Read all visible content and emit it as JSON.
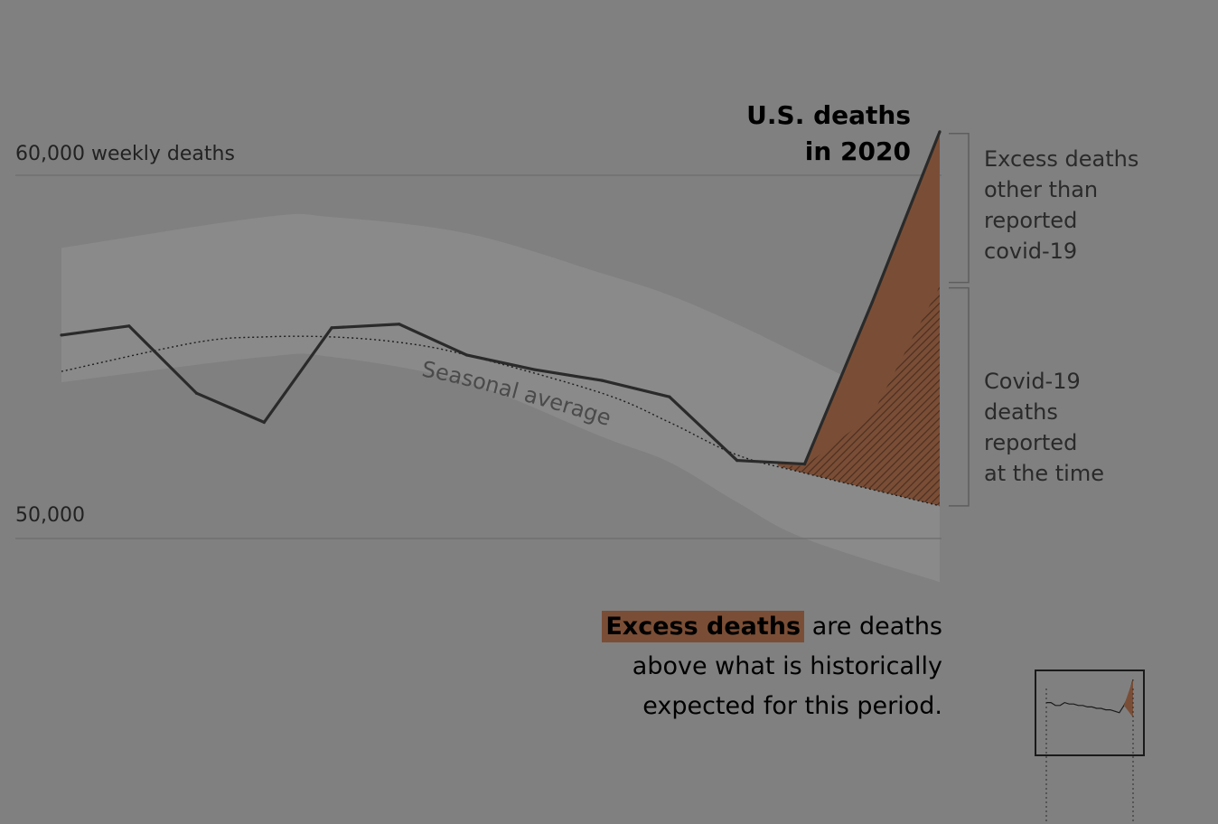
{
  "chart_data": {
    "type": "line",
    "title": "U.S. deaths in 2020",
    "title_lines": [
      "U.S. deaths",
      "in 2020"
    ],
    "y_axis": {
      "ticks": [
        {
          "value": 60000,
          "label": "60,000 weekly deaths"
        },
        {
          "value": 50000,
          "label": "50,000"
        }
      ],
      "ylim": [
        48800,
        61400
      ]
    },
    "x": [
      1,
      2,
      3,
      4,
      5,
      6,
      7,
      8,
      9,
      10,
      11,
      12,
      13,
      14
    ],
    "series": [
      {
        "values": [
          55600,
          55850,
          54000,
          53200,
          55800,
          55900,
          55050,
          54650,
          54350,
          53900,
          52150,
          52050,
          56500,
          61200
        ]
      }
    ],
    "seasonal_average": {
      "label": "Seasonal average",
      "x": [
        1,
        3,
        4,
        5,
        6,
        7,
        9,
        10,
        11,
        12,
        14
      ],
      "values": [
        54600,
        55400,
        55550,
        55550,
        55400,
        55050,
        54000,
        53200,
        52300,
        51800,
        50900
      ]
    },
    "band": {
      "x": [
        1,
        4,
        5,
        7,
        9,
        10,
        11,
        12,
        14
      ],
      "upper": [
        58000,
        58850,
        58850,
        58400,
        57300,
        56700,
        55900,
        55000,
        53200
      ],
      "lower": [
        54300,
        55000,
        55000,
        54300,
        52800,
        52100,
        51000,
        50000,
        48800
      ]
    },
    "covid_reported_top": {
      "x": [
        12,
        13,
        14
      ],
      "values": [
        52000,
        53400,
        56950
      ]
    },
    "excess_start_x": 11.6,
    "brackets": [
      {
        "label_lines": [
          "Excess deaths",
          "other than",
          "reported",
          "covid-19"
        ]
      },
      {
        "label_lines": [
          "Covid-19",
          "deaths",
          "reported",
          "at the time"
        ]
      }
    ],
    "colors": {
      "background": "#808080",
      "excess_fill": "#7a4e36",
      "covid_hatch": "#5a3626",
      "line": "#2a2a2a",
      "band": "#8a8a8a",
      "gridline": "#6c6c6c"
    },
    "grid": true
  },
  "explainer": {
    "highlight": "Excess deaths",
    "line1_rest": " are deaths",
    "line2": "above what is historically",
    "line3": "expected for this period."
  },
  "minimap": {
    "type": "thumbnail",
    "x": [
      1,
      2,
      3,
      4,
      5,
      6,
      7,
      8,
      9,
      10,
      11,
      12,
      13,
      14,
      15,
      16,
      17,
      18,
      19,
      20
    ],
    "values": [
      14,
      14,
      12,
      12,
      14,
      13,
      13,
      12,
      12,
      11,
      11,
      10,
      10,
      9,
      9,
      8,
      7,
      12,
      18,
      30
    ]
  }
}
